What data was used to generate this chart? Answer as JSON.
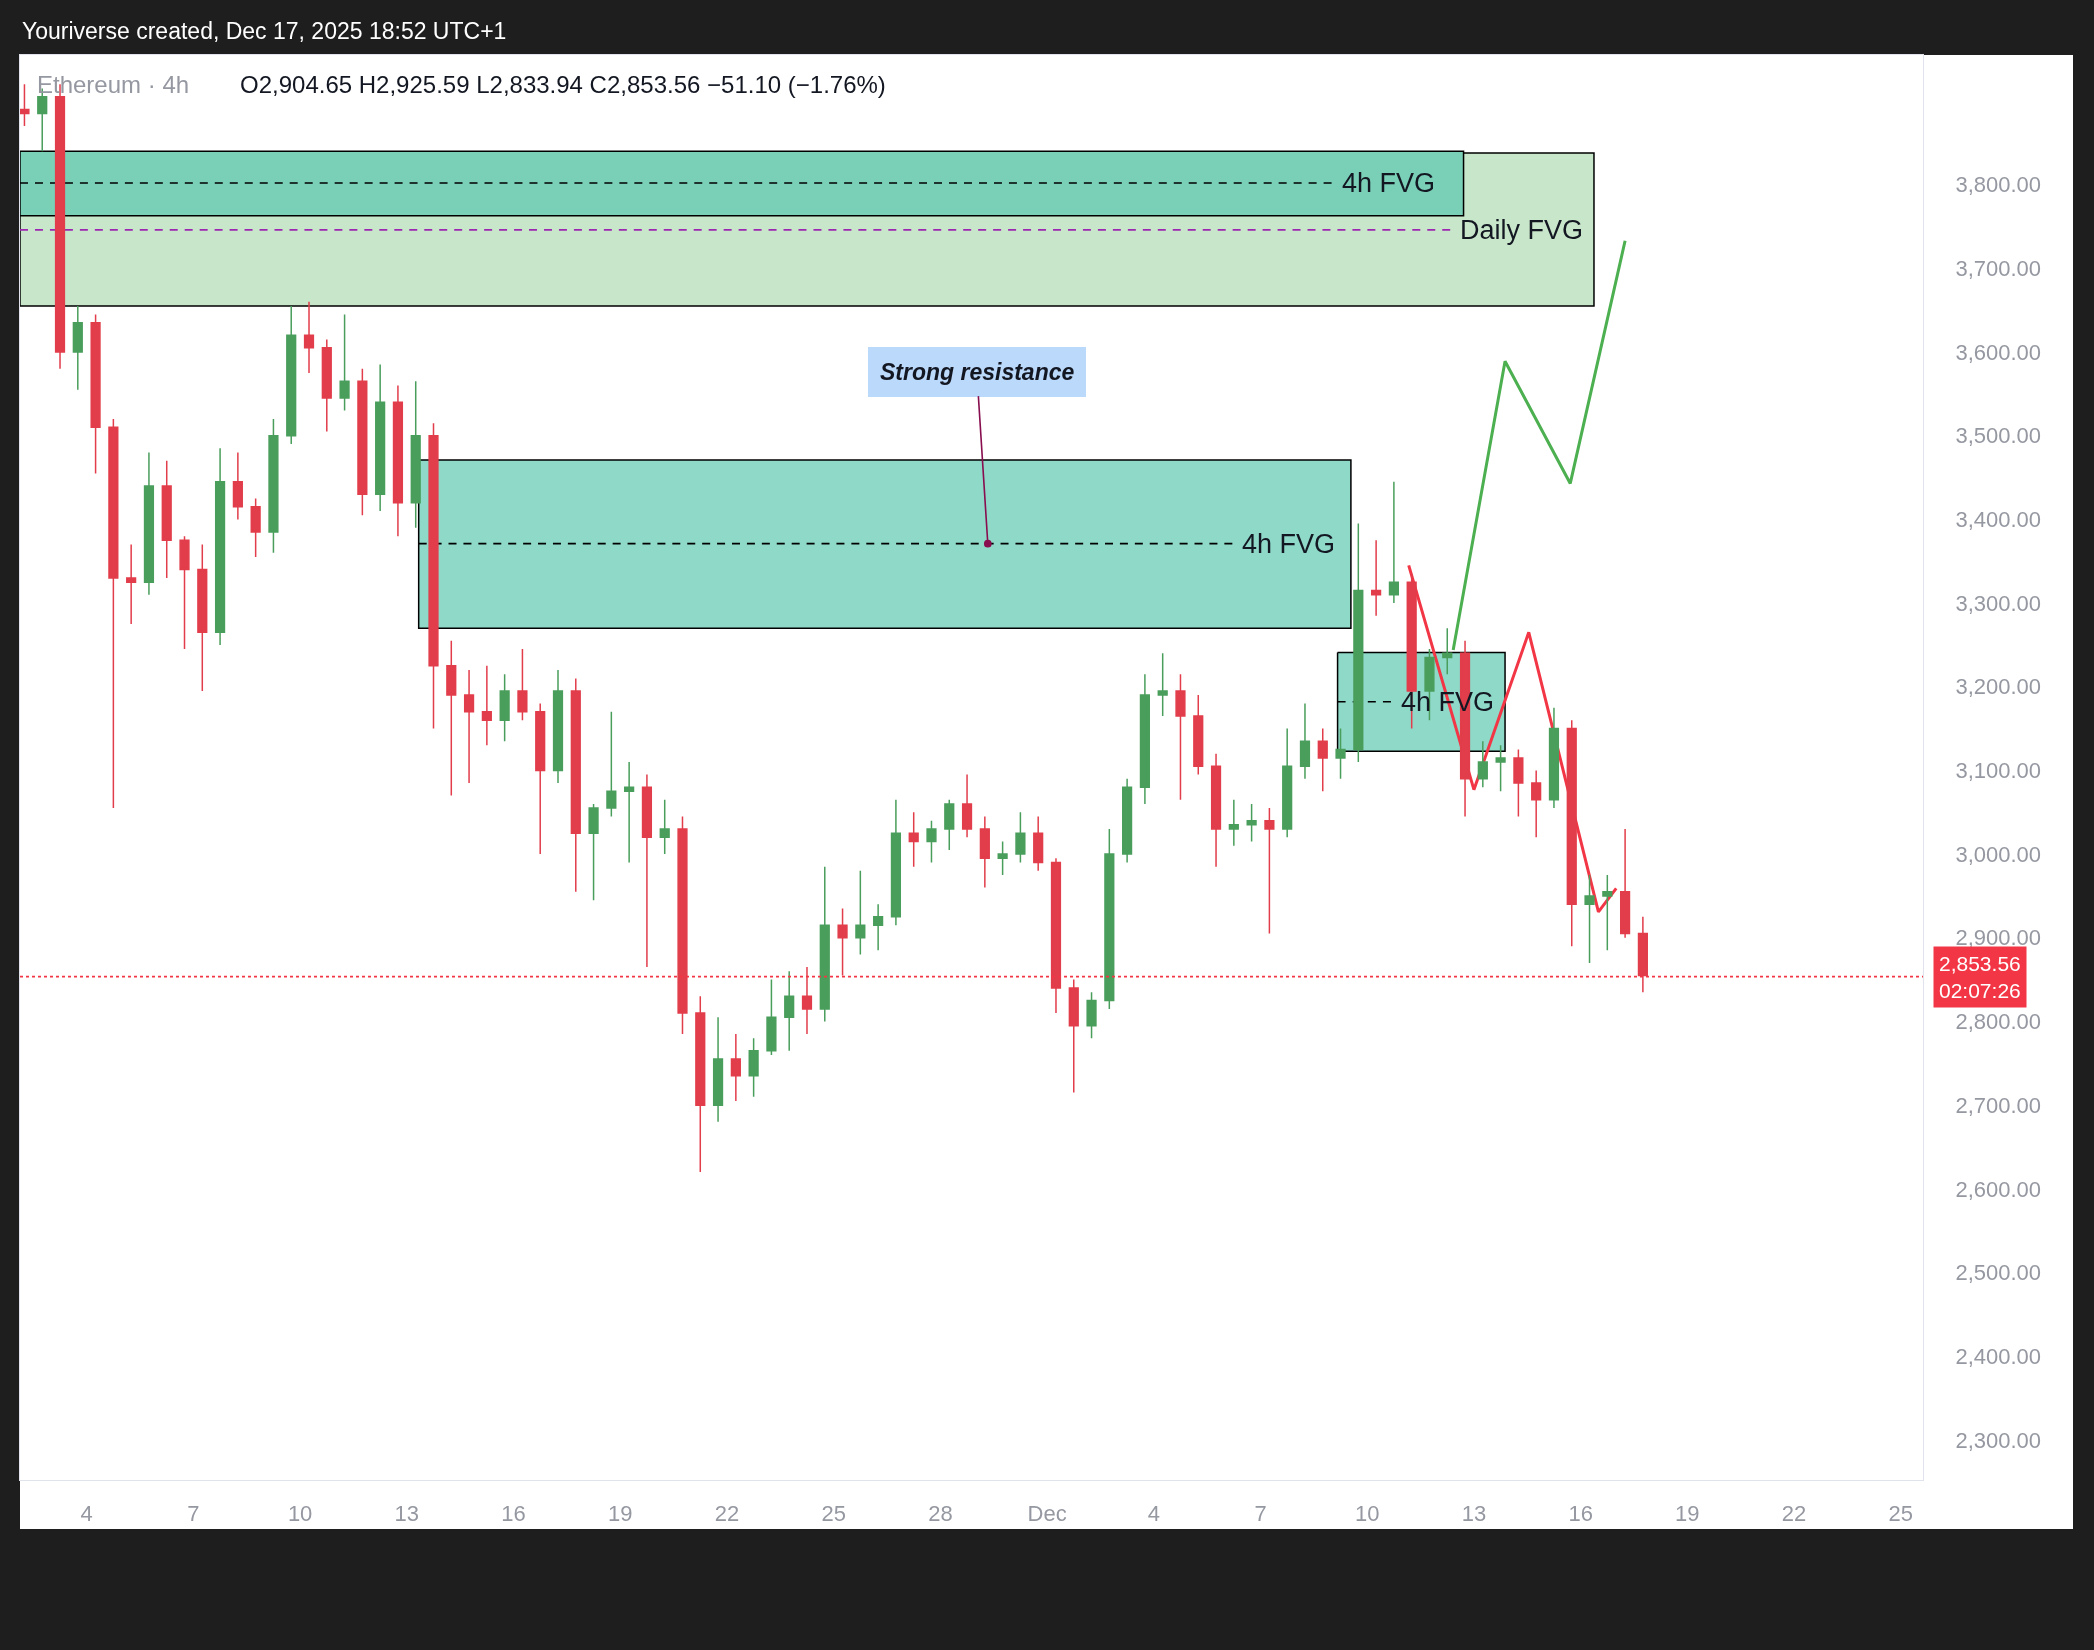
{
  "chart_data": {
    "type": "candlestick",
    "title": "Ethereum · 4h",
    "annotations": [
      "Youriverse created, Dec 17, 2025 18:52 UTC+1",
      "O2,904.65 H2,925.59 L2,833.94 C2,853.56 −51.10 (−1.76%)",
      {
        "text": "Strong resistance",
        "x": "2025-11-29T08:00",
        "y": 3371
      }
    ],
    "xlim": [
      "2025-11-02T03:00",
      "2025-12-25T15:00"
    ],
    "xticks": [
      {
        "value": "2025-11-04",
        "label": "4"
      },
      {
        "value": "2025-11-07",
        "label": "7"
      },
      {
        "value": "2025-11-10",
        "label": "10"
      },
      {
        "value": "2025-11-13",
        "label": "13"
      },
      {
        "value": "2025-11-16",
        "label": "16"
      },
      {
        "value": "2025-11-19",
        "label": "19"
      },
      {
        "value": "2025-11-22",
        "label": "22"
      },
      {
        "value": "2025-11-25",
        "label": "25"
      },
      {
        "value": "2025-11-28",
        "label": "28"
      },
      {
        "value": "2025-12-01",
        "label": "Dec"
      },
      {
        "value": "2025-12-04",
        "label": "4"
      },
      {
        "value": "2025-12-07",
        "label": "7"
      },
      {
        "value": "2025-12-10",
        "label": "10"
      },
      {
        "value": "2025-12-13",
        "label": "13"
      },
      {
        "value": "2025-12-16",
        "label": "16"
      },
      {
        "value": "2025-12-19",
        "label": "19"
      },
      {
        "value": "2025-12-22",
        "label": "22"
      },
      {
        "value": "2025-12-25",
        "label": "25"
      }
    ],
    "ylim": [
      2252,
      3955
    ],
    "yticks": [
      {
        "value": 2300,
        "label": "2,300.00"
      },
      {
        "value": 2400,
        "label": "2,400.00"
      },
      {
        "value": 2500,
        "label": "2,500.00"
      },
      {
        "value": 2600,
        "label": "2,600.00"
      },
      {
        "value": 2700,
        "label": "2,700.00"
      },
      {
        "value": 2800,
        "label": "2,800.00"
      },
      {
        "value": 2900,
        "label": "2,900.00"
      },
      {
        "value": 3000,
        "label": "3,000.00"
      },
      {
        "value": 3100,
        "label": "3,100.00"
      },
      {
        "value": 3200,
        "label": "3,200.00"
      },
      {
        "value": 3300,
        "label": "3,300.00"
      },
      {
        "value": 3400,
        "label": "3,400.00"
      },
      {
        "value": 3500,
        "label": "3,500.00"
      },
      {
        "value": 3600,
        "label": "3,600.00"
      },
      {
        "value": 3700,
        "label": "3,700.00"
      },
      {
        "value": 3800,
        "label": "3,800.00"
      }
    ],
    "ref_lines": [
      {
        "axis": "y",
        "value": 2853.56,
        "label": "2,853.56\n02:07:26",
        "color": "#f23645",
        "line_style": "dotted"
      }
    ],
    "series": [
      {
        "type": "line",
        "x": [
          "2025-11-02T03:00",
          "2025-12-16T09:00"
        ],
        "values": [
          null,
          null
        ],
        "lower": [
          3655,
          3655
        ],
        "upper": [
          3838,
          3838
        ],
        "color": "#c8e6c9"
      },
      {
        "type": "line",
        "x": [
          "2025-11-02T03:00",
          "2025-12-12T17:00"
        ],
        "values": [
          null,
          null
        ],
        "lower": [
          3763,
          3763
        ],
        "upper": [
          3840,
          3840
        ],
        "color": "#7acfb7"
      },
      {
        "type": "line",
        "x": [
          "2025-11-13T08:00",
          "2025-12-09T13:00"
        ],
        "values": [
          null,
          null
        ],
        "lower": [
          3270,
          3270
        ],
        "upper": [
          3471,
          3471
        ],
        "color": "#8fd9c9"
      },
      {
        "type": "line",
        "x": [
          "2025-12-09T04:00",
          "2025-12-13T21:00"
        ],
        "values": [
          null,
          null
        ],
        "lower": [
          3123,
          3123
        ],
        "upper": [
          3241,
          3241
        ],
        "color": "#8fd9c9"
      },
      {
        "type": "line",
        "name": "Daily FVG",
        "x": [
          "2025-11-02T03:00",
          "2025-12-12T08:00"
        ],
        "values": [
          3746,
          3746
        ],
        "color": "#9c27b0",
        "line_style": "dashed"
      },
      {
        "type": "line",
        "name": "4h FVG",
        "x": [
          "2025-11-02T03:00",
          "2025-12-09T00:00"
        ],
        "values": [
          3802,
          3802
        ],
        "color": "#000000",
        "line_style": "dashed"
      },
      {
        "type": "line",
        "name": "4h FVG",
        "x": [
          "2025-11-13T08:00",
          "2025-12-06T05:00"
        ],
        "values": [
          3371,
          3371
        ],
        "color": "#000000",
        "line_style": "dashed"
      },
      {
        "type": "line",
        "name": "4h FVG",
        "x": [
          "2025-12-09T04:00",
          "2025-12-10T16:00"
        ],
        "values": [
          3182,
          3182
        ],
        "color": "#000000",
        "line_style": "dashed"
      },
      {
        "type": "line",
        "x": [
          "2025-12-12T10:00",
          "2025-12-13T21:00",
          "2025-12-15T17:00",
          "2025-12-17T06:00"
        ],
        "values": [
          3244,
          3589,
          3443,
          3733
        ],
        "color": "#4caf50"
      },
      {
        "type": "line",
        "x": [
          "2025-12-11T04:00",
          "2025-12-13T00:00",
          "2025-12-14T13:00",
          "2025-12-16T12:00",
          "2025-12-17T00:00"
        ],
        "values": [
          3345,
          3077,
          3265,
          2931,
          2959
        ],
        "color": "#f23645"
      },
      {
        "x": [
          "2025-11-02T06:00",
          "2025-11-02T18:00",
          "2025-11-03T06:00",
          "2025-11-03T18:00",
          "2025-11-04T06:00",
          "2025-11-04T18:00",
          "2025-11-05T06:00",
          "2025-11-05T18:00",
          "2025-11-06T06:00",
          "2025-11-06T18:00",
          "2025-11-07T06:00",
          "2025-11-07T18:00",
          "2025-11-08T06:00",
          "2025-11-08T18:00",
          "2025-11-09T06:00",
          "2025-11-09T18:00",
          "2025-11-10T06:00",
          "2025-11-10T18:00",
          "2025-11-11T06:00",
          "2025-11-11T18:00",
          "2025-11-12T06:00",
          "2025-11-12T18:00",
          "2025-11-13T06:00",
          "2025-11-13T18:00",
          "2025-11-14T06:00",
          "2025-11-14T18:00",
          "2025-11-15T06:00",
          "2025-11-15T18:00",
          "2025-11-16T06:00",
          "2025-11-16T18:00",
          "2025-11-17T06:00",
          "2025-11-17T18:00",
          "2025-11-18T06:00",
          "2025-11-18T18:00",
          "2025-11-19T06:00",
          "2025-11-19T18:00",
          "2025-11-20T06:00",
          "2025-11-20T18:00",
          "2025-11-21T06:00",
          "2025-11-21T18:00",
          "2025-11-22T06:00",
          "2025-11-22T18:00",
          "2025-11-23T06:00",
          "2025-11-23T18:00",
          "2025-11-24T06:00",
          "2025-11-24T18:00",
          "2025-11-25T06:00",
          "2025-11-25T18:00",
          "2025-11-26T06:00",
          "2025-11-26T18:00",
          "2025-11-27T06:00",
          "2025-11-27T18:00",
          "2025-11-28T06:00",
          "2025-11-28T18:00",
          "2025-11-29T06:00",
          "2025-11-29T18:00",
          "2025-11-30T06:00",
          "2025-11-30T18:00",
          "2025-12-01T06:00",
          "2025-12-01T18:00",
          "2025-12-02T06:00",
          "2025-12-02T18:00",
          "2025-12-03T06:00",
          "2025-12-03T18:00",
          "2025-12-04T06:00",
          "2025-12-04T18:00",
          "2025-12-05T06:00",
          "2025-12-05T18:00",
          "2025-12-06T06:00",
          "2025-12-06T18:00",
          "2025-12-07T06:00",
          "2025-12-07T18:00",
          "2025-12-08T06:00",
          "2025-12-08T18:00",
          "2025-12-09T06:00",
          "2025-12-09T18:00",
          "2025-12-10T06:00",
          "2025-12-10T18:00",
          "2025-12-11T06:00",
          "2025-12-11T18:00",
          "2025-12-12T06:00",
          "2025-12-12T18:00",
          "2025-12-13T06:00",
          "2025-12-13T18:00",
          "2025-12-14T06:00",
          "2025-12-14T18:00",
          "2025-12-15T06:00",
          "2025-12-15T18:00",
          "2025-12-16T06:00",
          "2025-12-16T18:00",
          "2025-12-17T06:00",
          "2025-12-17T18:00"
        ],
        "ohlc": [
          [
            3890,
            3920,
            3870,
            3885
          ],
          [
            3885,
            3915,
            3840,
            3905
          ],
          [
            3905,
            3920,
            3580,
            3600
          ],
          [
            3600,
            3655,
            3555,
            3635
          ],
          [
            3635,
            3645,
            3455,
            3510
          ],
          [
            3510,
            3520,
            3055,
            3330
          ],
          [
            3330,
            3370,
            3275,
            3325
          ],
          [
            3325,
            3480,
            3310,
            3440
          ],
          [
            3440,
            3470,
            3330,
            3375
          ],
          [
            3375,
            3380,
            3245,
            3340
          ],
          [
            3340,
            3370,
            3195,
            3265
          ],
          [
            3265,
            3485,
            3250,
            3445
          ],
          [
            3445,
            3480,
            3400,
            3415
          ],
          [
            3415,
            3425,
            3355,
            3385
          ],
          [
            3385,
            3520,
            3360,
            3500
          ],
          [
            3500,
            3655,
            3490,
            3620
          ],
          [
            3620,
            3660,
            3575,
            3605
          ],
          [
            3605,
            3615,
            3505,
            3545
          ],
          [
            3545,
            3645,
            3530,
            3565
          ],
          [
            3565,
            3580,
            3405,
            3430
          ],
          [
            3430,
            3585,
            3410,
            3540
          ],
          [
            3540,
            3560,
            3380,
            3420
          ],
          [
            3420,
            3565,
            3390,
            3500
          ],
          [
            3500,
            3515,
            3150,
            3225
          ],
          [
            3225,
            3255,
            3070,
            3190
          ],
          [
            3190,
            3220,
            3085,
            3170
          ],
          [
            3170,
            3225,
            3130,
            3160
          ],
          [
            3160,
            3215,
            3135,
            3195
          ],
          [
            3195,
            3245,
            3160,
            3170
          ],
          [
            3170,
            3180,
            3000,
            3100
          ],
          [
            3100,
            3220,
            3085,
            3195
          ],
          [
            3195,
            3210,
            2955,
            3025
          ],
          [
            3025,
            3060,
            2945,
            3055
          ],
          [
            3055,
            3170,
            3045,
            3075
          ],
          [
            3075,
            3110,
            2990,
            3080
          ],
          [
            3080,
            3095,
            2865,
            3020
          ],
          [
            3020,
            3065,
            3000,
            3030
          ],
          [
            3030,
            3045,
            2785,
            2810
          ],
          [
            2810,
            2830,
            2620,
            2700
          ],
          [
            2700,
            2805,
            2680,
            2755
          ],
          [
            2755,
            2785,
            2705,
            2735
          ],
          [
            2735,
            2780,
            2710,
            2765
          ],
          [
            2765,
            2850,
            2760,
            2805
          ],
          [
            2805,
            2860,
            2765,
            2830
          ],
          [
            2830,
            2865,
            2785,
            2815
          ],
          [
            2815,
            2985,
            2800,
            2915
          ],
          [
            2915,
            2935,
            2855,
            2900
          ],
          [
            2900,
            2980,
            2880,
            2915
          ],
          [
            2915,
            2940,
            2885,
            2925
          ],
          [
            2925,
            3065,
            2915,
            3025
          ],
          [
            3025,
            3050,
            2985,
            3015
          ],
          [
            3015,
            3040,
            2990,
            3030
          ],
          [
            3030,
            3065,
            3005,
            3060
          ],
          [
            3060,
            3095,
            3020,
            3030
          ],
          [
            3030,
            3045,
            2960,
            2995
          ],
          [
            2995,
            3015,
            2975,
            3000
          ],
          [
            3000,
            3050,
            2990,
            3025
          ],
          [
            3025,
            3045,
            2980,
            2990
          ],
          [
            2990,
            2995,
            2810,
            2840
          ],
          [
            2840,
            2850,
            2715,
            2795
          ],
          [
            2795,
            2835,
            2780,
            2825
          ],
          [
            2825,
            3030,
            2815,
            3000
          ],
          [
            3000,
            3090,
            2990,
            3080
          ],
          [
            3080,
            3215,
            3060,
            3190
          ],
          [
            3190,
            3240,
            3165,
            3195
          ],
          [
            3195,
            3215,
            3065,
            3165
          ],
          [
            3165,
            3190,
            3095,
            3105
          ],
          [
            3105,
            3120,
            2985,
            3030
          ],
          [
            3030,
            3065,
            3010,
            3035
          ],
          [
            3035,
            3060,
            3015,
            3040
          ],
          [
            3040,
            3055,
            2905,
            3030
          ],
          [
            3030,
            3150,
            3020,
            3105
          ],
          [
            3105,
            3180,
            3090,
            3135
          ],
          [
            3135,
            3150,
            3075,
            3115
          ],
          [
            3115,
            3150,
            3090,
            3125
          ],
          [
            3125,
            3395,
            3110,
            3315
          ],
          [
            3315,
            3375,
            3285,
            3310
          ],
          [
            3310,
            3445,
            3300,
            3325
          ],
          [
            3325,
            3335,
            3150,
            3195
          ],
          [
            3195,
            3245,
            3160,
            3235
          ],
          [
            3235,
            3270,
            3215,
            3240
          ],
          [
            3240,
            3255,
            3045,
            3090
          ],
          [
            3090,
            3135,
            3080,
            3110
          ],
          [
            3110,
            3130,
            3075,
            3115
          ],
          [
            3115,
            3125,
            3045,
            3085
          ],
          [
            3085,
            3100,
            3020,
            3065
          ],
          [
            3065,
            3175,
            3055,
            3150
          ],
          [
            3150,
            3160,
            2890,
            2940
          ],
          [
            2940,
            2975,
            2870,
            2950
          ],
          [
            2950,
            2975,
            2885,
            2955
          ],
          [
            2955,
            3030,
            2900,
            2905
          ],
          [
            2905,
            2925,
            2835,
            2855
          ]
        ],
        "colors": [
          "#e23d4b",
          "#4a9e5c",
          "#e23d4b",
          "#4a9e5c",
          "#e23d4b",
          "#e23d4b",
          "#e23d4b",
          "#4a9e5c",
          "#e23d4b",
          "#e23d4b",
          "#e23d4b",
          "#4a9e5c",
          "#e23d4b",
          "#e23d4b",
          "#4a9e5c",
          "#4a9e5c",
          "#e23d4b",
          "#e23d4b",
          "#4a9e5c",
          "#e23d4b",
          "#4a9e5c",
          "#e23d4b",
          "#4a9e5c",
          "#e23d4b",
          "#e23d4b",
          "#e23d4b",
          "#e23d4b",
          "#4a9e5c",
          "#e23d4b",
          "#e23d4b",
          "#4a9e5c",
          "#e23d4b",
          "#4a9e5c",
          "#4a9e5c",
          "#4a9e5c",
          "#e23d4b",
          "#4a9e5c",
          "#e23d4b",
          "#e23d4b",
          "#4a9e5c",
          "#e23d4b",
          "#4a9e5c",
          "#4a9e5c",
          "#4a9e5c",
          "#e23d4b",
          "#4a9e5c",
          "#e23d4b",
          "#4a9e5c",
          "#4a9e5c",
          "#4a9e5c",
          "#e23d4b",
          "#4a9e5c",
          "#4a9e5c",
          "#e23d4b",
          "#e23d4b",
          "#4a9e5c",
          "#4a9e5c",
          "#e23d4b",
          "#e23d4b",
          "#e23d4b",
          "#4a9e5c",
          "#4a9e5c",
          "#4a9e5c",
          "#4a9e5c",
          "#4a9e5c",
          "#e23d4b",
          "#e23d4b",
          "#e23d4b",
          "#4a9e5c",
          "#4a9e5c",
          "#e23d4b",
          "#4a9e5c",
          "#4a9e5c",
          "#e23d4b",
          "#4a9e5c",
          "#4a9e5c",
          "#e23d4b",
          "#4a9e5c",
          "#e23d4b",
          "#4a9e5c",
          "#4a9e5c",
          "#e23d4b",
          "#4a9e5c",
          "#4a9e5c",
          "#e23d4b",
          "#e23d4b",
          "#4a9e5c",
          "#e23d4b",
          "#4a9e5c",
          "#4a9e5c",
          "#e23d4b",
          "#e23d4b"
        ]
      }
    ]
  }
}
